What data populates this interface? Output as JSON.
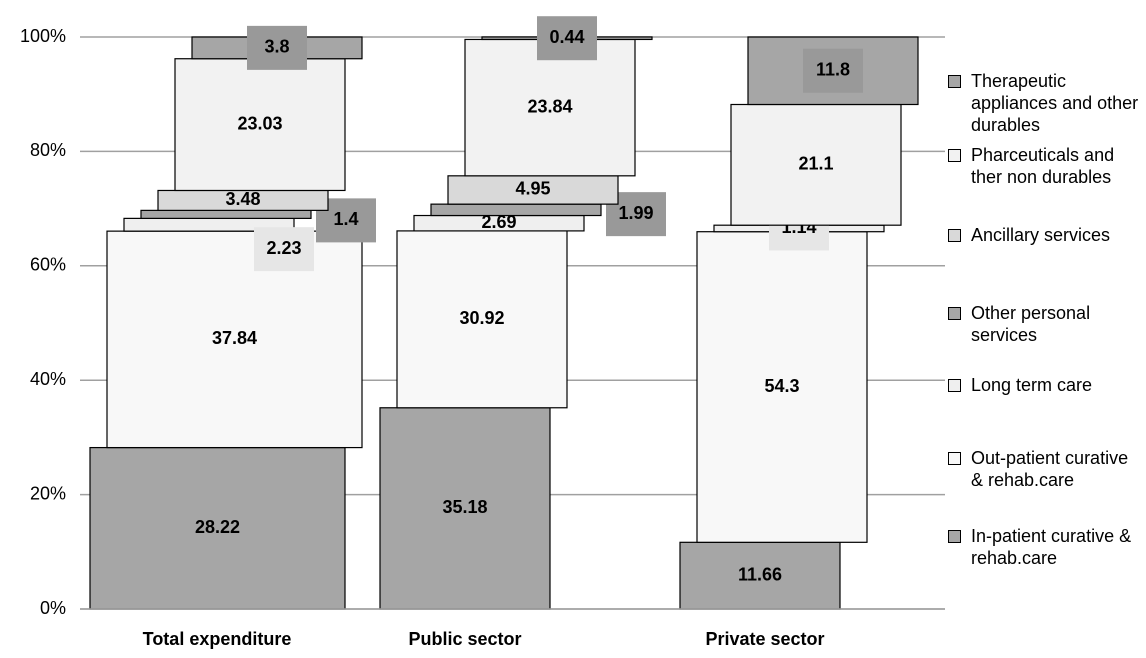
{
  "chart_data": {
    "type": "stacked_bar",
    "categories": [
      "Total expenditure",
      "Public sector",
      "Private sector"
    ],
    "series": [
      {
        "name": "In-patient curative & rehab.care",
        "color": "#a6a6a6",
        "values": [
          28.22,
          35.18,
          11.66
        ]
      },
      {
        "name": "Out-patient curative & rehab.care",
        "color": "#f8f8f8",
        "values": [
          37.84,
          30.92,
          54.3
        ]
      },
      {
        "name": "Long term care",
        "color": "#efefef",
        "values": [
          2.23,
          2.69,
          1.14
        ]
      },
      {
        "name": "Other personal services",
        "color": "#a6a6a6",
        "values": [
          1.4,
          1.99,
          null
        ]
      },
      {
        "name": "Ancillary services",
        "color": "#d9d9d9",
        "values": [
          3.48,
          4.95,
          null
        ]
      },
      {
        "name": "Pharceuticals and ther non durables",
        "color": "#f2f2f2",
        "values": [
          23.03,
          23.84,
          21.1
        ]
      },
      {
        "name": "Therapeutic appliances and other durables",
        "color": "#a6a6a6",
        "values": [
          3.8,
          0.44,
          11.8
        ]
      }
    ],
    "ylim": [
      0,
      100
    ],
    "yticks": [
      {
        "value": 0,
        "label": "0%"
      },
      {
        "value": 20,
        "label": "20%"
      },
      {
        "value": 40,
        "label": "40%"
      },
      {
        "value": 60,
        "label": "60%"
      },
      {
        "value": 80,
        "label": "80%"
      },
      {
        "value": 100,
        "label": "100%"
      }
    ],
    "grid": true
  }
}
